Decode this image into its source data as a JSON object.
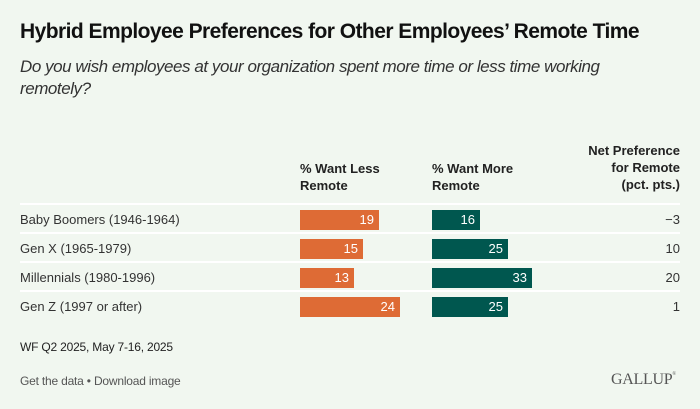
{
  "header": {
    "title": "Hybrid Employee Preferences for Other Employees’ Remote Time",
    "subtitle": "Do you wish employees at your organization spent more time or less time working remotely?"
  },
  "colors": {
    "less": "#DE6B35",
    "more": "#00574F",
    "background": "#F1F7F0"
  },
  "chart_data": {
    "type": "table",
    "title": "Hybrid Employee Preferences for Other Employees’ Remote Time",
    "subtitle": "Do you wish employees at your organization spent more time or less time working remotely?",
    "columns": {
      "less": "% Want Less Remote",
      "more": "% Want More Remote",
      "net_line1": "Net Preference",
      "net_line2": "for Remote",
      "net_line3": "(pct. pts.)"
    },
    "categories": [
      "Baby Boomers (1946-1964)",
      "Gen X (1965-1979)",
      "Millennials (1980-1996)",
      "Gen Z (1997 or after)"
    ],
    "series": [
      {
        "name": "% Want Less Remote",
        "key": "less",
        "values": [
          19,
          15,
          13,
          24
        ]
      },
      {
        "name": "% Want More Remote",
        "key": "more",
        "values": [
          16,
          25,
          33,
          25
        ]
      }
    ],
    "net": [
      "−3",
      "10",
      "20",
      "1"
    ]
  },
  "footer": {
    "source": "WF Q2 2025, May 7-16, 2025",
    "get_data": "Get the data",
    "bullet": " • ",
    "download": "Download image",
    "logo": "GALLUP",
    "logo_mark": "®"
  }
}
